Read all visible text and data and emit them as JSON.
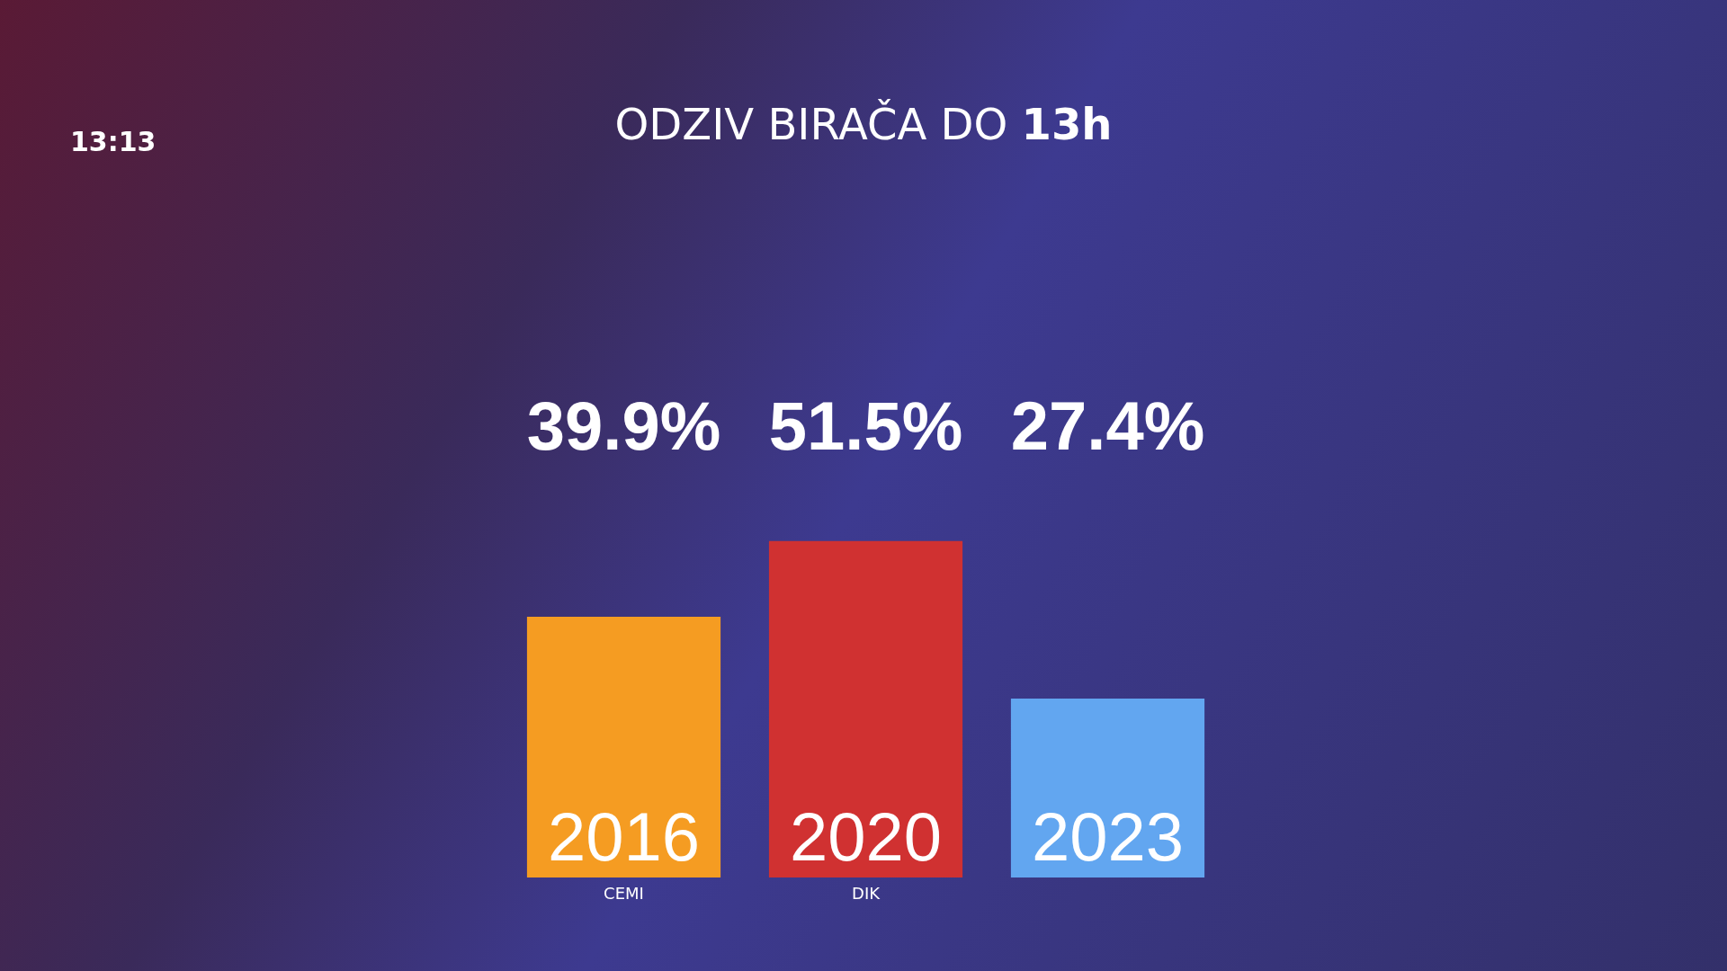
{
  "chart_data": {
    "type": "bar",
    "title": "ODZIV BIRAČA DO 13h",
    "categories": [
      "2016",
      "2020",
      "2023"
    ],
    "values": [
      39.9,
      51.5,
      27.4
    ],
    "colors": [
      "#f59c22",
      "#d03131",
      "#62a6f0"
    ],
    "value_labels": [
      "39.9%",
      "51.5%",
      "27.4%"
    ],
    "annotations": [
      "13:13",
      "CEMI",
      "DIK"
    ],
    "tick_labels": false
  }
}
